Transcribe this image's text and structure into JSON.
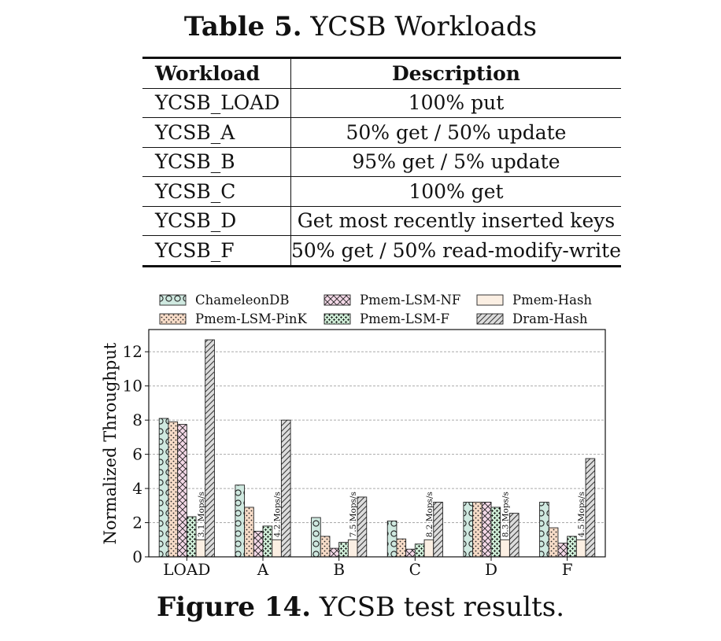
{
  "table": {
    "caption_label": "Table 5.",
    "caption_text": "YCSB Workloads",
    "headers": [
      "Workload",
      "Description"
    ],
    "rows": [
      [
        "YCSB_LOAD",
        "100% put"
      ],
      [
        "YCSB_A",
        "50% get / 50% update"
      ],
      [
        "YCSB_B",
        "95% get / 5% update"
      ],
      [
        "YCSB_C",
        "100% get"
      ],
      [
        "YCSB_D",
        "Get most recently inserted keys"
      ],
      [
        "YCSB_F",
        "50% get / 50% read-modify-write"
      ]
    ]
  },
  "figure": {
    "caption_label": "Figure 14.",
    "caption_text": "YCSB test results."
  },
  "chart_data": {
    "type": "bar",
    "title": "",
    "xlabel": "",
    "ylabel": "Normalized Throughput",
    "ylim": [
      0,
      13.3
    ],
    "yticks": [
      0,
      2,
      4,
      6,
      8,
      10,
      12
    ],
    "grid": true,
    "legend_position": "top",
    "categories": [
      "LOAD",
      "A",
      "B",
      "C",
      "D",
      "F"
    ],
    "series": [
      {
        "name": "ChameleonDB",
        "color": "#cfe9e0",
        "pattern": "circles",
        "values": [
          8.1,
          4.2,
          2.3,
          2.1,
          3.2,
          3.2
        ]
      },
      {
        "name": "Pmem-LSM-PinK",
        "color": "#f7dcc8",
        "pattern": "dots",
        "values": [
          7.9,
          2.9,
          1.2,
          1.05,
          3.2,
          1.7
        ]
      },
      {
        "name": "Pmem-LSM-NF",
        "color": "#f4d9e8",
        "pattern": "crosshatch",
        "values": [
          7.75,
          1.5,
          0.5,
          0.45,
          3.2,
          0.8
        ]
      },
      {
        "name": "Pmem-LSM-F",
        "color": "#cdebd5",
        "pattern": "stars",
        "values": [
          2.35,
          1.8,
          0.85,
          0.75,
          2.9,
          1.2
        ]
      },
      {
        "name": "Pmem-Hash",
        "color": "#fbefe3",
        "pattern": "plain",
        "values": [
          1.0,
          1.0,
          1.0,
          1.0,
          1.0,
          1.0
        ]
      },
      {
        "name": "Dram-Hash",
        "color": "#dddddd",
        "pattern": "diagonal",
        "values": [
          12.7,
          8.0,
          3.5,
          3.2,
          2.55,
          5.75
        ]
      }
    ],
    "annotations": [
      "3.1 Mops/s",
      "4.2 Mops/s",
      "7.5 Mops/s",
      "8.2 Mops/s",
      "8.3 Mops/s",
      "4.5 Mops/s"
    ]
  }
}
